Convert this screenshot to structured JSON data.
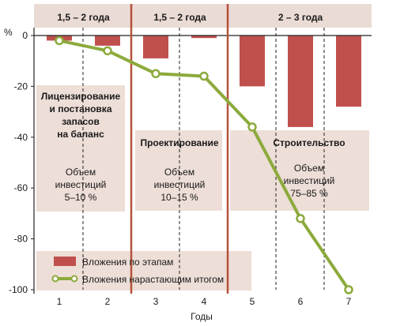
{
  "chart_data": {
    "type": "bar+line",
    "y_unit": "%",
    "x_label": "Годы",
    "x": [
      1,
      2,
      3,
      4,
      5,
      6,
      7
    ],
    "ylim": [
      -100,
      0
    ],
    "y_ticks": [
      0,
      -20,
      -40,
      -60,
      -80,
      -100
    ],
    "series": [
      {
        "name": "Вложения по этапам",
        "type": "bar",
        "color": "#c0504d",
        "values": [
          -2,
          -4,
          -9,
          -1,
          -20,
          -36,
          -28
        ]
      },
      {
        "name": "Вложения нарастающим итогом",
        "type": "line",
        "color": "#8caa3c",
        "values": [
          -2,
          -6,
          -15,
          -16,
          -36,
          -72,
          -100
        ]
      }
    ],
    "periods": [
      {
        "label": "1,5 – 2 года",
        "from": 1,
        "to": 2
      },
      {
        "label": "1,5 – 2 года",
        "from": 3,
        "to": 4
      },
      {
        "label": "2 – 3 года",
        "from": 5,
        "to": 7
      }
    ],
    "stages": [
      {
        "title": [
          "Лицензирование",
          "и постановка",
          "запасов",
          "на баланс"
        ],
        "info": [
          "Объем",
          "инвестиций",
          "5–10 %"
        ]
      },
      {
        "title": [
          "Проектирование"
        ],
        "info": [
          "Объем",
          "инвестиций",
          "10–15 %"
        ]
      },
      {
        "title": [
          "Строительство"
        ],
        "info": [
          "Объем",
          "инвестиций",
          "75–85 %"
        ]
      }
    ],
    "colors": {
      "period_divider": "#b5523a",
      "header_band": "#eadbd5",
      "stage_box": "#ead9d2"
    }
  }
}
